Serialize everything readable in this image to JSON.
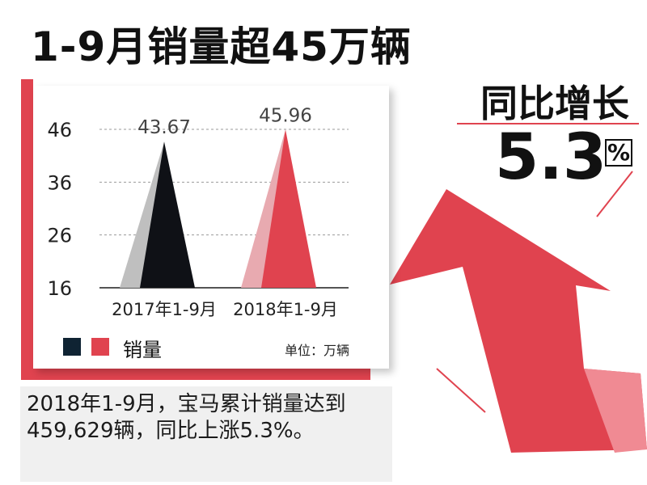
{
  "title": "1-9月销量超45万辆",
  "yoy": {
    "label": "同比增长",
    "value": "5.3",
    "unit": "%"
  },
  "chart_data": {
    "type": "bar",
    "categories": [
      "2017年1-9月",
      "2018年1-9月"
    ],
    "values": [
      43.67,
      45.96
    ],
    "value_labels": [
      "43.67",
      "45.96"
    ],
    "yticks": [
      "46",
      "36",
      "26",
      "16"
    ],
    "ylim": [
      16,
      46
    ],
    "grid": true,
    "legend_label": "销量",
    "unit_label": "单位：万辆",
    "colors": {
      "bar2017": "#0f1116",
      "shadow2017": "#bfbfbf",
      "bar2018": "#e0434f",
      "shadow2018": "#e8aab0"
    }
  },
  "description": "2018年1-9月，宝马累计销量达到459,629辆，同比上涨5.3%。",
  "accent": "#e0434f"
}
